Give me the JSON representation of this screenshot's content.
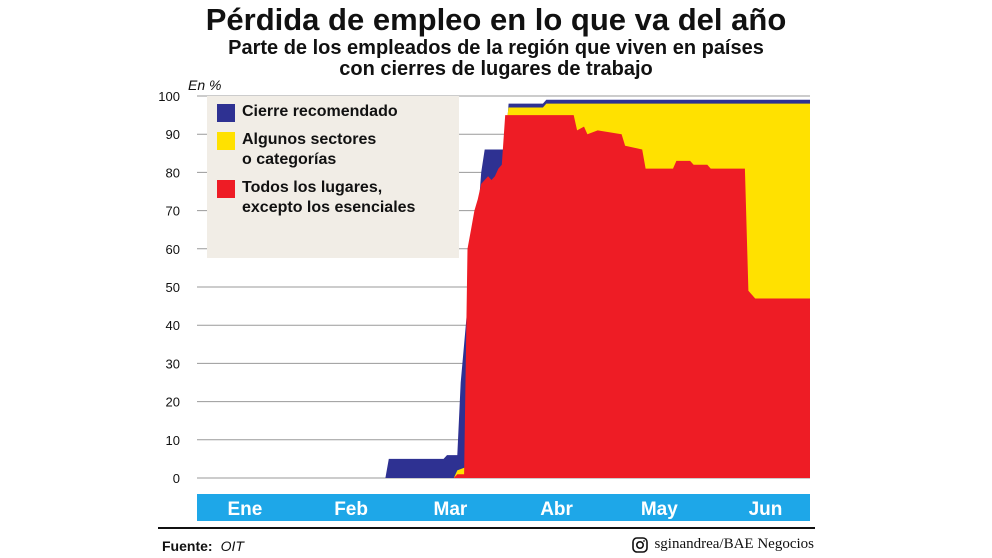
{
  "header": {
    "title": "Pérdida de empleo en lo que va del año",
    "subtitle_line1": "Parte de los empleados de la región que viven en países",
    "subtitle_line2": "con cierres de lugares de trabajo"
  },
  "footer": {
    "source_label": "Fuente:",
    "source_value": "OIT",
    "credit": "sginandrea/BAE Negocios",
    "credit_icon": "instagram-icon"
  },
  "colors": {
    "recommended": "#2e3192",
    "some_sectors": "#ffe100",
    "all_workplaces": "#ee1c25",
    "month_band": "#1ea7e8",
    "legend_bg": "#f1ede6"
  },
  "chart_data": {
    "type": "area",
    "stacked": true,
    "ylabel": "En %",
    "ylim": [
      0,
      100
    ],
    "yticks": [
      0,
      10,
      20,
      30,
      40,
      50,
      60,
      70,
      80,
      90,
      100
    ],
    "grid": true,
    "x_unit": "day of year 2020 (1 = 1 Jan)",
    "xlim": [
      1,
      180
    ],
    "month_labels": [
      {
        "label": "Ene",
        "day": 15
      },
      {
        "label": "Feb",
        "day": 46
      },
      {
        "label": "Mar",
        "day": 75
      },
      {
        "label": "Abr",
        "day": 106
      },
      {
        "label": "May",
        "day": 136
      },
      {
        "label": "Jun",
        "day": 167
      }
    ],
    "legend_position": "top-left",
    "series": [
      {
        "name": "Cierre recomendado",
        "legend_lines": [
          "Cierre recomendado"
        ],
        "color": "#2e3192",
        "points": [
          [
            1,
            0
          ],
          [
            56,
            0
          ],
          [
            57,
            5
          ],
          [
            73,
            5
          ],
          [
            74,
            6
          ],
          [
            77,
            6
          ],
          [
            78,
            25
          ],
          [
            80,
            45
          ],
          [
            81,
            55
          ],
          [
            82,
            60
          ],
          [
            83,
            68
          ],
          [
            84,
            80
          ],
          [
            85,
            86
          ],
          [
            91,
            86
          ],
          [
            92,
            98
          ],
          [
            102,
            98
          ],
          [
            103,
            99
          ],
          [
            112,
            99
          ],
          [
            113,
            99
          ],
          [
            180,
            99
          ]
        ]
      },
      {
        "name": "Algunos sectores o categorías",
        "legend_lines": [
          "Algunos sectores",
          "o categorías"
        ],
        "color": "#ffe100",
        "points": [
          [
            1,
            0
          ],
          [
            76,
            0
          ],
          [
            77,
            2
          ],
          [
            80,
            3
          ],
          [
            82,
            5
          ],
          [
            83,
            15
          ],
          [
            84,
            40
          ],
          [
            85,
            74
          ],
          [
            87,
            77
          ],
          [
            89,
            78
          ],
          [
            90,
            80
          ],
          [
            91,
            91
          ],
          [
            92,
            97
          ],
          [
            102,
            97
          ],
          [
            103,
            98
          ],
          [
            180,
            98
          ]
        ]
      },
      {
        "name": "Todos los lugares, excepto los esenciales",
        "legend_lines": [
          "Todos los lugares,",
          "excepto los esenciales"
        ],
        "color": "#ee1c25",
        "points": [
          [
            1,
            0
          ],
          [
            76,
            0
          ],
          [
            77,
            1
          ],
          [
            79,
            1
          ],
          [
            80,
            60
          ],
          [
            81,
            65
          ],
          [
            82,
            70
          ],
          [
            83,
            73
          ],
          [
            84,
            77
          ],
          [
            85,
            78
          ],
          [
            86,
            79
          ],
          [
            87,
            78
          ],
          [
            88,
            79
          ],
          [
            89,
            81
          ],
          [
            90,
            82
          ],
          [
            91,
            95
          ],
          [
            94,
            95
          ],
          [
            95,
            95
          ],
          [
            111,
            95
          ],
          [
            112,
            91
          ],
          [
            114,
            92
          ],
          [
            115,
            90
          ],
          [
            118,
            91
          ],
          [
            125,
            90
          ],
          [
            126,
            87
          ],
          [
            131,
            86
          ],
          [
            132,
            81
          ],
          [
            137,
            81
          ],
          [
            140,
            81
          ],
          [
            141,
            83
          ],
          [
            145,
            83
          ],
          [
            146,
            82
          ],
          [
            150,
            82
          ],
          [
            151,
            81
          ],
          [
            161,
            81
          ],
          [
            162,
            49
          ],
          [
            164,
            47
          ],
          [
            180,
            47
          ]
        ]
      }
    ]
  }
}
